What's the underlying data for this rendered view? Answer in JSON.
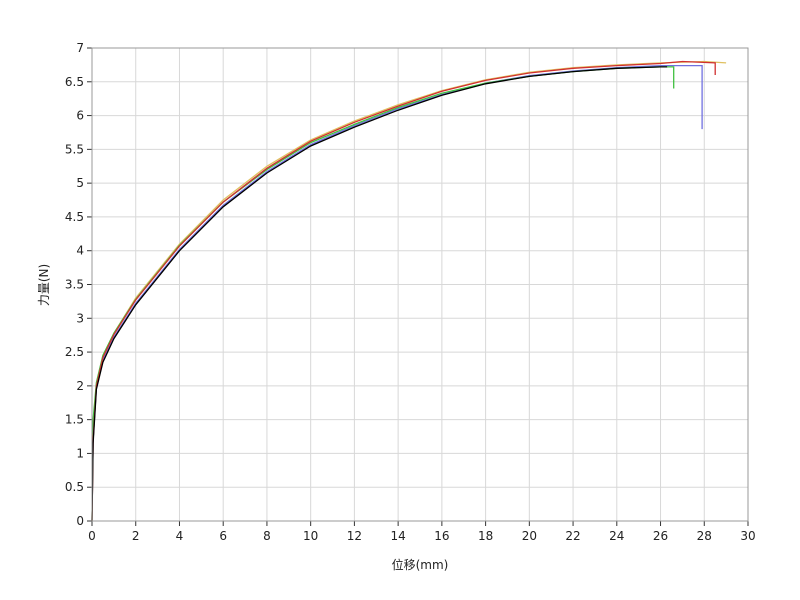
{
  "chart_data": {
    "type": "line",
    "xlabel": "位移(mm)",
    "ylabel": "力量(N)",
    "xlim": [
      0,
      30
    ],
    "ylim": [
      0,
      7
    ],
    "xticks": [
      0,
      2,
      4,
      6,
      8,
      10,
      12,
      14,
      16,
      18,
      20,
      22,
      24,
      26,
      28,
      30
    ],
    "yticks": [
      0,
      0.5,
      1,
      1.5,
      2,
      2.5,
      3,
      3.5,
      4,
      4.5,
      5,
      5.5,
      6,
      6.5,
      7
    ],
    "grid": true,
    "series": [
      {
        "color": "#000000",
        "x": [
          0,
          0.05,
          0.2,
          0.5,
          1,
          2,
          4,
          6,
          8,
          10,
          12,
          14,
          16,
          18,
          20,
          22,
          24,
          26,
          26.3
        ],
        "y": [
          0,
          1.15,
          1.95,
          2.35,
          2.7,
          3.2,
          4.0,
          4.65,
          5.15,
          5.55,
          5.83,
          6.08,
          6.3,
          6.47,
          6.58,
          6.65,
          6.7,
          6.72,
          6.72
        ]
      },
      {
        "color": "#d03030",
        "x": [
          0,
          0.05,
          0.2,
          0.5,
          1,
          2,
          4,
          6,
          8,
          10,
          12,
          14,
          16,
          18,
          20,
          22,
          24,
          26,
          27,
          28.5,
          28.5
        ],
        "y": [
          0,
          1.2,
          2.0,
          2.42,
          2.76,
          3.27,
          4.07,
          4.72,
          5.22,
          5.62,
          5.9,
          6.14,
          6.36,
          6.52,
          6.63,
          6.7,
          6.74,
          6.77,
          6.8,
          6.78,
          6.6
        ]
      },
      {
        "color": "#40c040",
        "x": [
          0,
          0.05,
          0.2,
          0.5,
          1,
          2,
          4,
          6,
          8,
          10,
          12,
          14,
          16,
          18,
          20,
          22,
          24,
          26,
          26.6,
          26.6
        ],
        "y": [
          0,
          1.5,
          2.05,
          2.45,
          2.78,
          3.28,
          4.08,
          4.72,
          5.2,
          5.6,
          5.87,
          6.12,
          6.33,
          6.48,
          6.58,
          6.65,
          6.7,
          6.72,
          6.72,
          6.4
        ]
      },
      {
        "color": "#7070e0",
        "x": [
          0,
          0.05,
          0.2,
          0.5,
          1,
          2,
          4,
          6,
          8,
          10,
          12,
          14,
          16,
          18,
          20,
          22,
          24,
          26,
          27.9,
          27.9
        ],
        "y": [
          0,
          1.2,
          1.97,
          2.38,
          2.72,
          3.22,
          4.02,
          4.67,
          5.17,
          5.57,
          5.85,
          6.1,
          6.31,
          6.48,
          6.59,
          6.66,
          6.71,
          6.74,
          6.74,
          5.8
        ]
      },
      {
        "color": "#e0c060",
        "x": [
          0,
          0.05,
          0.2,
          0.5,
          1,
          2,
          4,
          6,
          8,
          10,
          12,
          14,
          16,
          18,
          20,
          22,
          24,
          26,
          28,
          29
        ],
        "y": [
          0,
          1.2,
          2.02,
          2.44,
          2.78,
          3.3,
          4.1,
          4.75,
          5.25,
          5.64,
          5.92,
          6.16,
          6.37,
          6.53,
          6.64,
          6.71,
          6.75,
          6.78,
          6.8,
          6.78
        ]
      }
    ]
  }
}
